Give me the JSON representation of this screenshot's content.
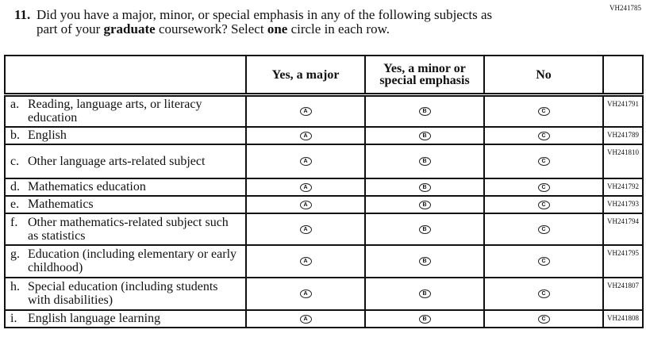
{
  "page_code": "VH241785",
  "question": {
    "number": "11.",
    "line1": "Did you have a major, minor, or special emphasis in any of the following subjects as",
    "line2_pre": "part of your ",
    "line2_bold1": "graduate",
    "line2_mid": " coursework? Select ",
    "line2_bold2": "one",
    "line2_post": " circle in each row."
  },
  "columns": [
    "Yes, a major",
    "Yes, a minor or special emphasis",
    "No"
  ],
  "options": [
    "A",
    "B",
    "C"
  ],
  "rows": [
    {
      "letter": "a.",
      "label": "Reading, language arts, or literacy education",
      "code": "VH241791"
    },
    {
      "letter": "b.",
      "label": "English",
      "code": "VH241789"
    },
    {
      "letter": "c.",
      "label": "Other language arts-related subject",
      "code": "VH241810"
    },
    {
      "letter": "d.",
      "label": "Mathematics education",
      "code": "VH241792"
    },
    {
      "letter": "e.",
      "label": "Mathematics",
      "code": "VH241793"
    },
    {
      "letter": "f.",
      "label": "Other mathematics-related subject such as statistics",
      "code": "VH241794"
    },
    {
      "letter": "g.",
      "label": "Education (including elementary or early childhood)",
      "code": "VH241795"
    },
    {
      "letter": "h.",
      "label": "Special education (including students with disabilities)",
      "code": "VH241807"
    },
    {
      "letter": "i.",
      "label": "English language learning",
      "code": "VH241808"
    }
  ]
}
